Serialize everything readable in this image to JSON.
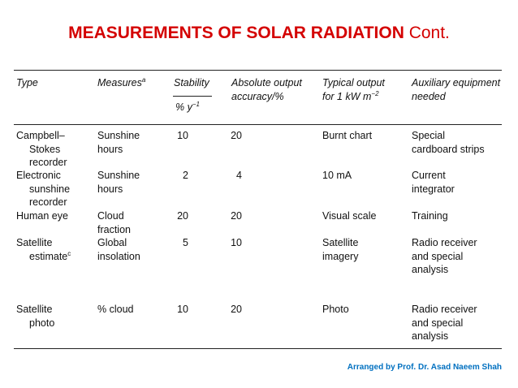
{
  "title": {
    "bold": "MEASUREMENTS OF SOLAR RADIATION",
    "cont": "Cont."
  },
  "table": {
    "headers": {
      "type": "Type",
      "measures": "Measures",
      "measures_sup": "a",
      "stability": "Stability",
      "stability_unit": "% y",
      "stability_unit_sup": "−1",
      "accuracy_l1": "Absolute output",
      "accuracy_l2": "accuracy/%",
      "typical_l1": "Typical output",
      "typical_l2": "for 1 kW m",
      "typical_sup": "−2",
      "aux_l1": "Auxiliary equipment",
      "aux_l2": "needed"
    },
    "rows": [
      {
        "type": [
          "Campbell–",
          "Stokes",
          "recorder"
        ],
        "measures": [
          "Sunshine",
          "hours"
        ],
        "stability": "10",
        "accuracy": "20",
        "typical": [
          "Burnt chart"
        ],
        "aux": [
          "Special",
          "cardboard strips"
        ]
      },
      {
        "type": [
          "Electronic",
          "sunshine",
          "recorder"
        ],
        "measures": [
          "Sunshine",
          "hours"
        ],
        "stability": "2",
        "accuracy": "4",
        "typical": [
          "10 mA"
        ],
        "aux": [
          "Current",
          "integrator"
        ]
      },
      {
        "type": [
          "Human eye"
        ],
        "measures": [
          "Cloud",
          "fraction"
        ],
        "stability": "20",
        "accuracy": "20",
        "typical": [
          "Visual scale"
        ],
        "aux": [
          "Training"
        ]
      },
      {
        "type": [
          "Satellite",
          "estimate"
        ],
        "type_sup": "c",
        "measures": [
          "Global",
          "insolation"
        ],
        "stability": "5",
        "accuracy": "10",
        "typical": [
          "Satellite",
          "imagery"
        ],
        "aux": [
          "Radio receiver",
          "and special",
          "analysis"
        ]
      },
      {
        "type": [
          "Satellite",
          "photo"
        ],
        "measures": [
          "% cloud"
        ],
        "stability": "10",
        "accuracy": "20",
        "typical": [
          "Photo"
        ],
        "aux": [
          "Radio receiver",
          "and special",
          "analysis"
        ]
      }
    ]
  },
  "credit": "Arranged by Prof. Dr. Asad Naeem Shah"
}
